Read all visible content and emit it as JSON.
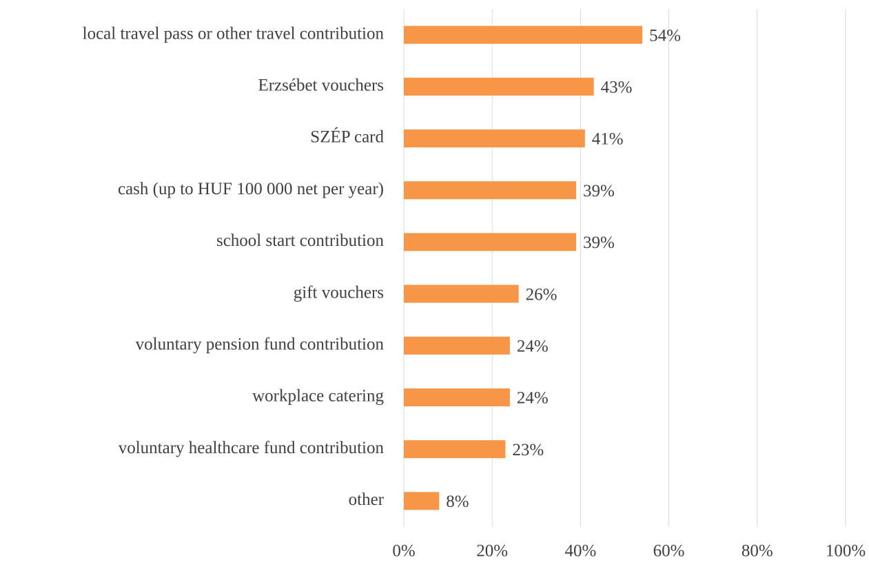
{
  "chart_data": {
    "type": "bar",
    "orientation": "horizontal",
    "categories": [
      "local travel pass or other travel contribution",
      "Erzsébet vouchers",
      "SZÉP card",
      "cash (up to HUF 100 000 net per year)",
      "school start contribution",
      "gift vouchers",
      "voluntary pension fund contribution",
      "workplace catering",
      "voluntary healthcare fund contribution",
      "other"
    ],
    "values": [
      54,
      43,
      41,
      39,
      39,
      26,
      24,
      24,
      23,
      8
    ],
    "value_labels": [
      "54%",
      "43%",
      "41%",
      "39%",
      "39%",
      "26%",
      "24%",
      "24%",
      "23%",
      "8%"
    ],
    "color": "#f79646",
    "xlim": [
      0,
      100
    ],
    "xticks": [
      {
        "value": 0,
        "label": "0%"
      },
      {
        "value": 20,
        "label": "20%"
      },
      {
        "value": 40,
        "label": "40%"
      },
      {
        "value": 60,
        "label": "60%"
      },
      {
        "value": 80,
        "label": "80%"
      },
      {
        "value": 100,
        "label": "100%"
      }
    ],
    "grid": true
  }
}
